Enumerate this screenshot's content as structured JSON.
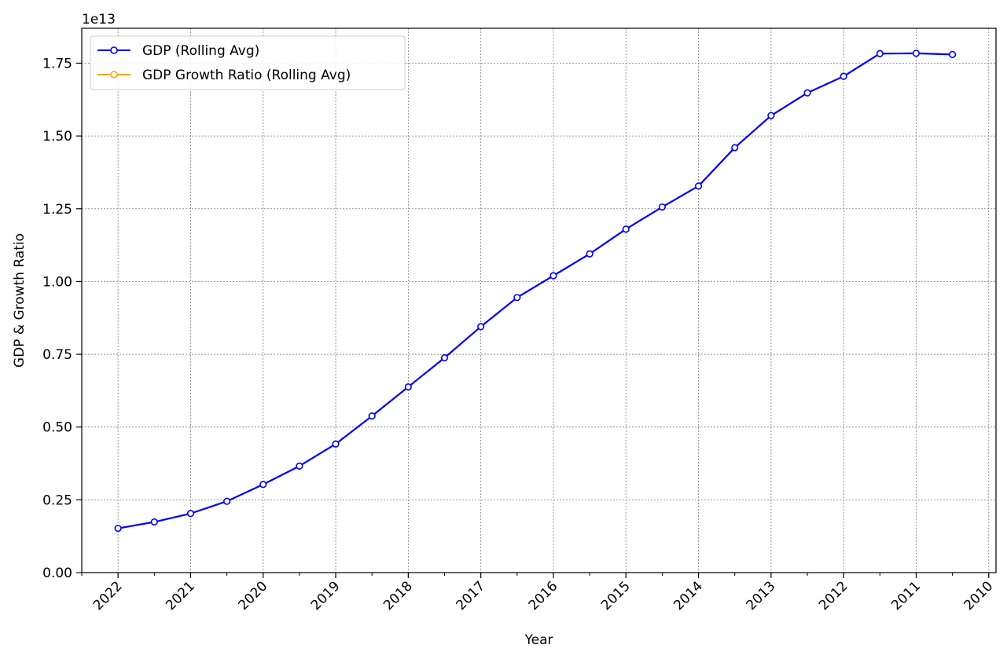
{
  "chart_data": {
    "type": "line",
    "xlabel": "Year",
    "ylabel": "GDP & Growth Ratio",
    "y_offset_label": "1e13",
    "y_scale": 10000000000000.0,
    "xlim": [
      2022.5,
      2009.9
    ],
    "ylim": [
      0,
      18700000000000.0
    ],
    "x_ticks": [
      2022,
      2021,
      2020,
      2019,
      2018,
      2017,
      2016,
      2015,
      2014,
      2013,
      2012,
      2011,
      2010
    ],
    "y_ticks": [
      0,
      2500000000000.0,
      5000000000000.0,
      7500000000000.0,
      10000000000000.0,
      12500000000000.0,
      15000000000000.0,
      17500000000000.0
    ],
    "y_tick_labels": [
      "0.00",
      "0.25",
      "0.50",
      "0.75",
      "1.00",
      "1.25",
      "1.50",
      "1.75"
    ],
    "grid": true,
    "legend_position": "top-left",
    "series": [
      {
        "name": "GDP (Rolling Avg)",
        "color": "#0000ff",
        "marker": "circle",
        "x": [
          2022,
          2021.5,
          2021,
          2020.5,
          2020,
          2019.5,
          2019,
          2018.5,
          2018,
          2017.5,
          2017,
          2016.5,
          2016,
          2015.5,
          2015,
          2014.5,
          2014,
          2013.5,
          2013,
          2012.5,
          2012,
          2011.5,
          2011,
          2010.5
        ],
        "values": [
          1520000000000.0,
          1740000000000.0,
          2030000000000.0,
          2450000000000.0,
          3030000000000.0,
          3660000000000.0,
          4420000000000.0,
          5380000000000.0,
          6380000000000.0,
          7380000000000.0,
          8450000000000.0,
          9450000000000.0,
          10200000000000.0,
          10950000000000.0,
          11800000000000.0,
          12560000000000.0,
          13280000000000.0,
          14600000000000.0,
          15700000000000.0,
          16480000000000.0,
          17050000000000.0,
          17830000000000.0,
          17840000000000.0,
          17800000000000.0
        ]
      },
      {
        "name": "GDP Growth Ratio (Rolling Avg)",
        "color": "#ffa500",
        "marker": "circle",
        "x": [],
        "values": []
      }
    ]
  }
}
